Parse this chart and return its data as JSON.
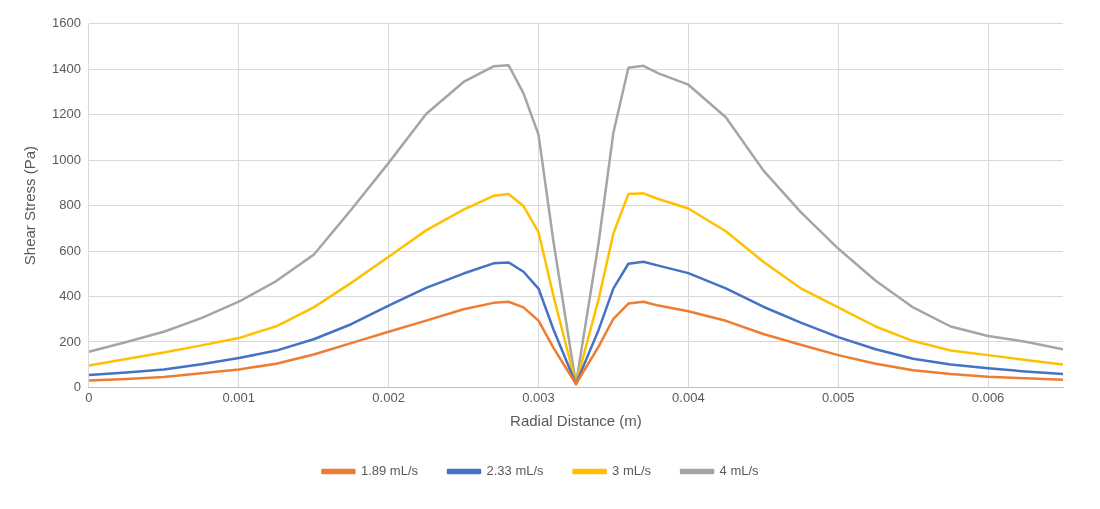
{
  "chart_data": {
    "type": "line",
    "xlabel": "Radial Distance (m)",
    "ylabel": "Shear Stress (Pa)",
    "x": [
      0,
      0.00025,
      0.0005,
      0.00075,
      0.001,
      0.00125,
      0.0015,
      0.00175,
      0.002,
      0.00225,
      0.0025,
      0.0027,
      0.0028,
      0.0029,
      0.003,
      0.0031,
      0.00325,
      0.0034,
      0.0035,
      0.0036,
      0.0037,
      0.0038,
      0.004,
      0.00425,
      0.0045,
      0.00475,
      0.005,
      0.00525,
      0.0055,
      0.00575,
      0.006,
      0.00625,
      0.0065
    ],
    "xlim": [
      0,
      0.0065
    ],
    "xticks": [
      0,
      0.001,
      0.002,
      0.003,
      0.004,
      0.005,
      0.006
    ],
    "ylim": [
      0,
      1600
    ],
    "yticks": [
      0,
      200,
      400,
      600,
      800,
      1000,
      1200,
      1400,
      1600
    ],
    "grid": true,
    "legend": "bottom",
    "marker": "none",
    "series": [
      {
        "name": "1.89 mL/s",
        "color": "#ed7d31",
        "values": [
          30,
          37,
          46,
          62,
          79,
          104,
          145,
          195,
          245,
          294,
          344,
          372,
          377,
          352,
          294,
          174,
          15,
          178,
          302,
          369,
          377,
          360,
          335,
          293,
          235,
          188,
          142,
          104,
          75,
          59,
          47,
          40,
          34
        ]
      },
      {
        "name": "2.33 mL/s",
        "color": "#4472c4",
        "values": [
          55,
          66,
          79,
          102,
          129,
          162,
          212,
          278,
          360,
          438,
          501,
          546,
          550,
          509,
          435,
          255,
          15,
          251,
          436,
          544,
          553,
          536,
          503,
          436,
          355,
          285,
          221,
          168,
          126,
          101,
          84,
          70,
          59
        ]
      },
      {
        "name": "3 mL/s",
        "color": "#ffc000",
        "values": [
          96,
          125,
          154,
          185,
          217,
          269,
          352,
          460,
          575,
          691,
          782,
          843,
          851,
          798,
          683,
          402,
          15,
          385,
          678,
          851,
          854,
          829,
          787,
          687,
          553,
          436,
          352,
          268,
          204,
          162,
          142,
          121,
          101
        ]
      },
      {
        "name": "4 mL/s",
        "color": "#a5a5a5",
        "values": [
          157,
          200,
          245,
          305,
          377,
          468,
          584,
          782,
          988,
          1203,
          1344,
          1413,
          1418,
          1294,
          1112,
          641,
          15,
          631,
          1122,
          1407,
          1415,
          1382,
          1332,
          1189,
          955,
          771,
          611,
          469,
          352,
          268,
          226,
          201,
          168
        ]
      }
    ]
  }
}
